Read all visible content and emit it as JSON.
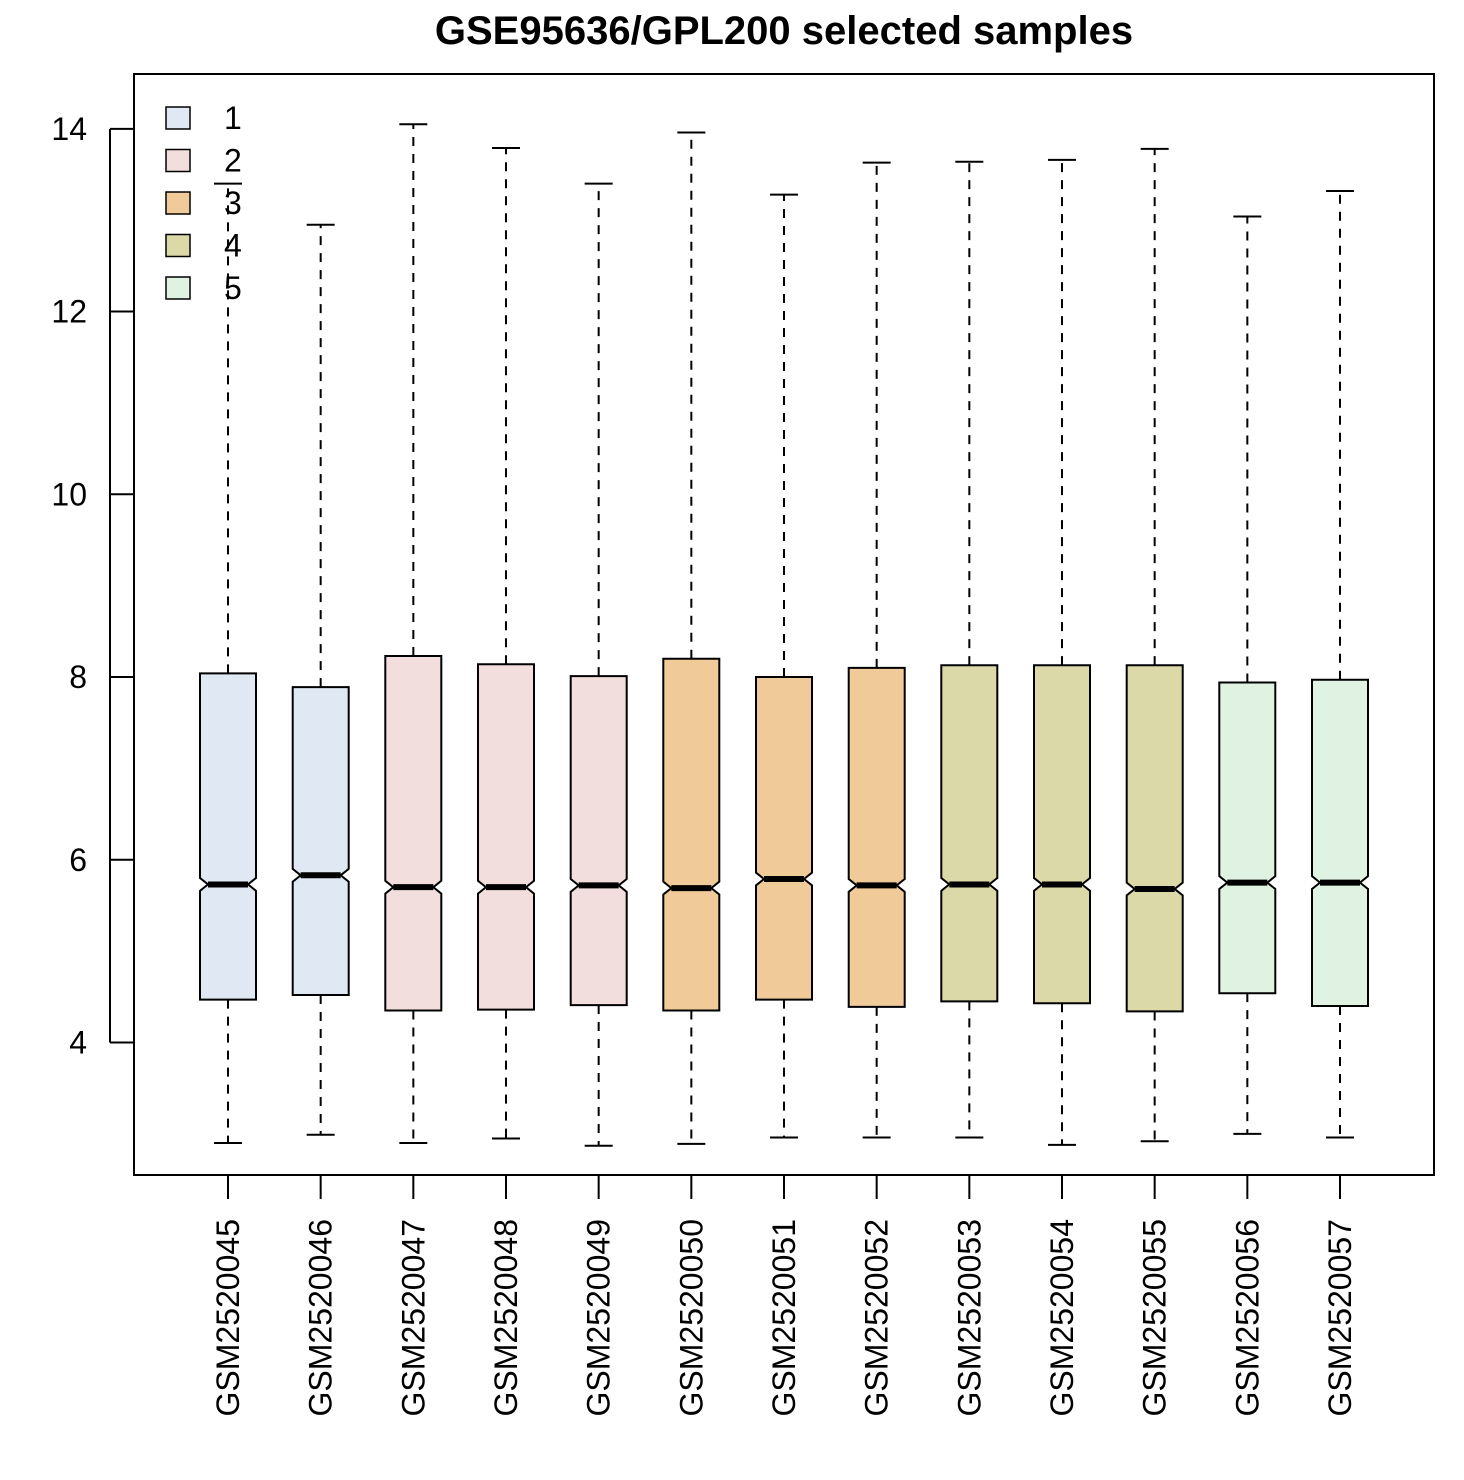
{
  "chart_data": {
    "type": "boxplot",
    "title": "GSE95636/GPL200 selected samples",
    "xlabel": "",
    "ylabel": "",
    "ylim": [
      2.55,
      14.6
    ],
    "yticks": [
      4,
      6,
      8,
      10,
      12,
      14
    ],
    "notched": true,
    "legend": {
      "placement": "top-left",
      "entries": [
        {
          "label": "1",
          "color": "#dfe8f3"
        },
        {
          "label": "2",
          "color": "#f2dfdd"
        },
        {
          "label": "3",
          "color": "#f0ca98"
        },
        {
          "label": "4",
          "color": "#dbd9a8"
        },
        {
          "label": "5",
          "color": "#e0f3e2"
        }
      ]
    },
    "samples": [
      {
        "name": "GSM2520045",
        "group": "1",
        "min": 2.9,
        "q1": 4.47,
        "median": 5.73,
        "q3": 8.04,
        "max": 13.4
      },
      {
        "name": "GSM2520046",
        "group": "1",
        "min": 2.99,
        "q1": 4.52,
        "median": 5.83,
        "q3": 7.89,
        "max": 12.95
      },
      {
        "name": "GSM2520047",
        "group": "2",
        "min": 2.9,
        "q1": 4.35,
        "median": 5.7,
        "q3": 8.23,
        "max": 14.05
      },
      {
        "name": "GSM2520048",
        "group": "2",
        "min": 2.95,
        "q1": 4.36,
        "median": 5.7,
        "q3": 8.14,
        "max": 13.79
      },
      {
        "name": "GSM2520049",
        "group": "2",
        "min": 2.87,
        "q1": 4.41,
        "median": 5.72,
        "q3": 8.01,
        "max": 13.4
      },
      {
        "name": "GSM2520050",
        "group": "3",
        "min": 2.89,
        "q1": 4.35,
        "median": 5.69,
        "q3": 8.2,
        "max": 13.96
      },
      {
        "name": "GSM2520051",
        "group": "3",
        "min": 2.96,
        "q1": 4.47,
        "median": 5.79,
        "q3": 8.0,
        "max": 13.28
      },
      {
        "name": "GSM2520052",
        "group": "3",
        "min": 2.96,
        "q1": 4.39,
        "median": 5.72,
        "q3": 8.1,
        "max": 13.63
      },
      {
        "name": "GSM2520053",
        "group": "4",
        "min": 2.96,
        "q1": 4.45,
        "median": 5.73,
        "q3": 8.13,
        "max": 13.64
      },
      {
        "name": "GSM2520054",
        "group": "4",
        "min": 2.88,
        "q1": 4.43,
        "median": 5.73,
        "q3": 8.13,
        "max": 13.66
      },
      {
        "name": "GSM2520055",
        "group": "4",
        "min": 2.92,
        "q1": 4.34,
        "median": 5.68,
        "q3": 8.13,
        "max": 13.78
      },
      {
        "name": "GSM2520056",
        "group": "5",
        "min": 3.0,
        "q1": 4.54,
        "median": 5.75,
        "q3": 7.94,
        "max": 13.04
      },
      {
        "name": "GSM2520057",
        "group": "5",
        "min": 2.96,
        "q1": 4.4,
        "median": 5.75,
        "q3": 7.97,
        "max": 13.32
      }
    ]
  }
}
